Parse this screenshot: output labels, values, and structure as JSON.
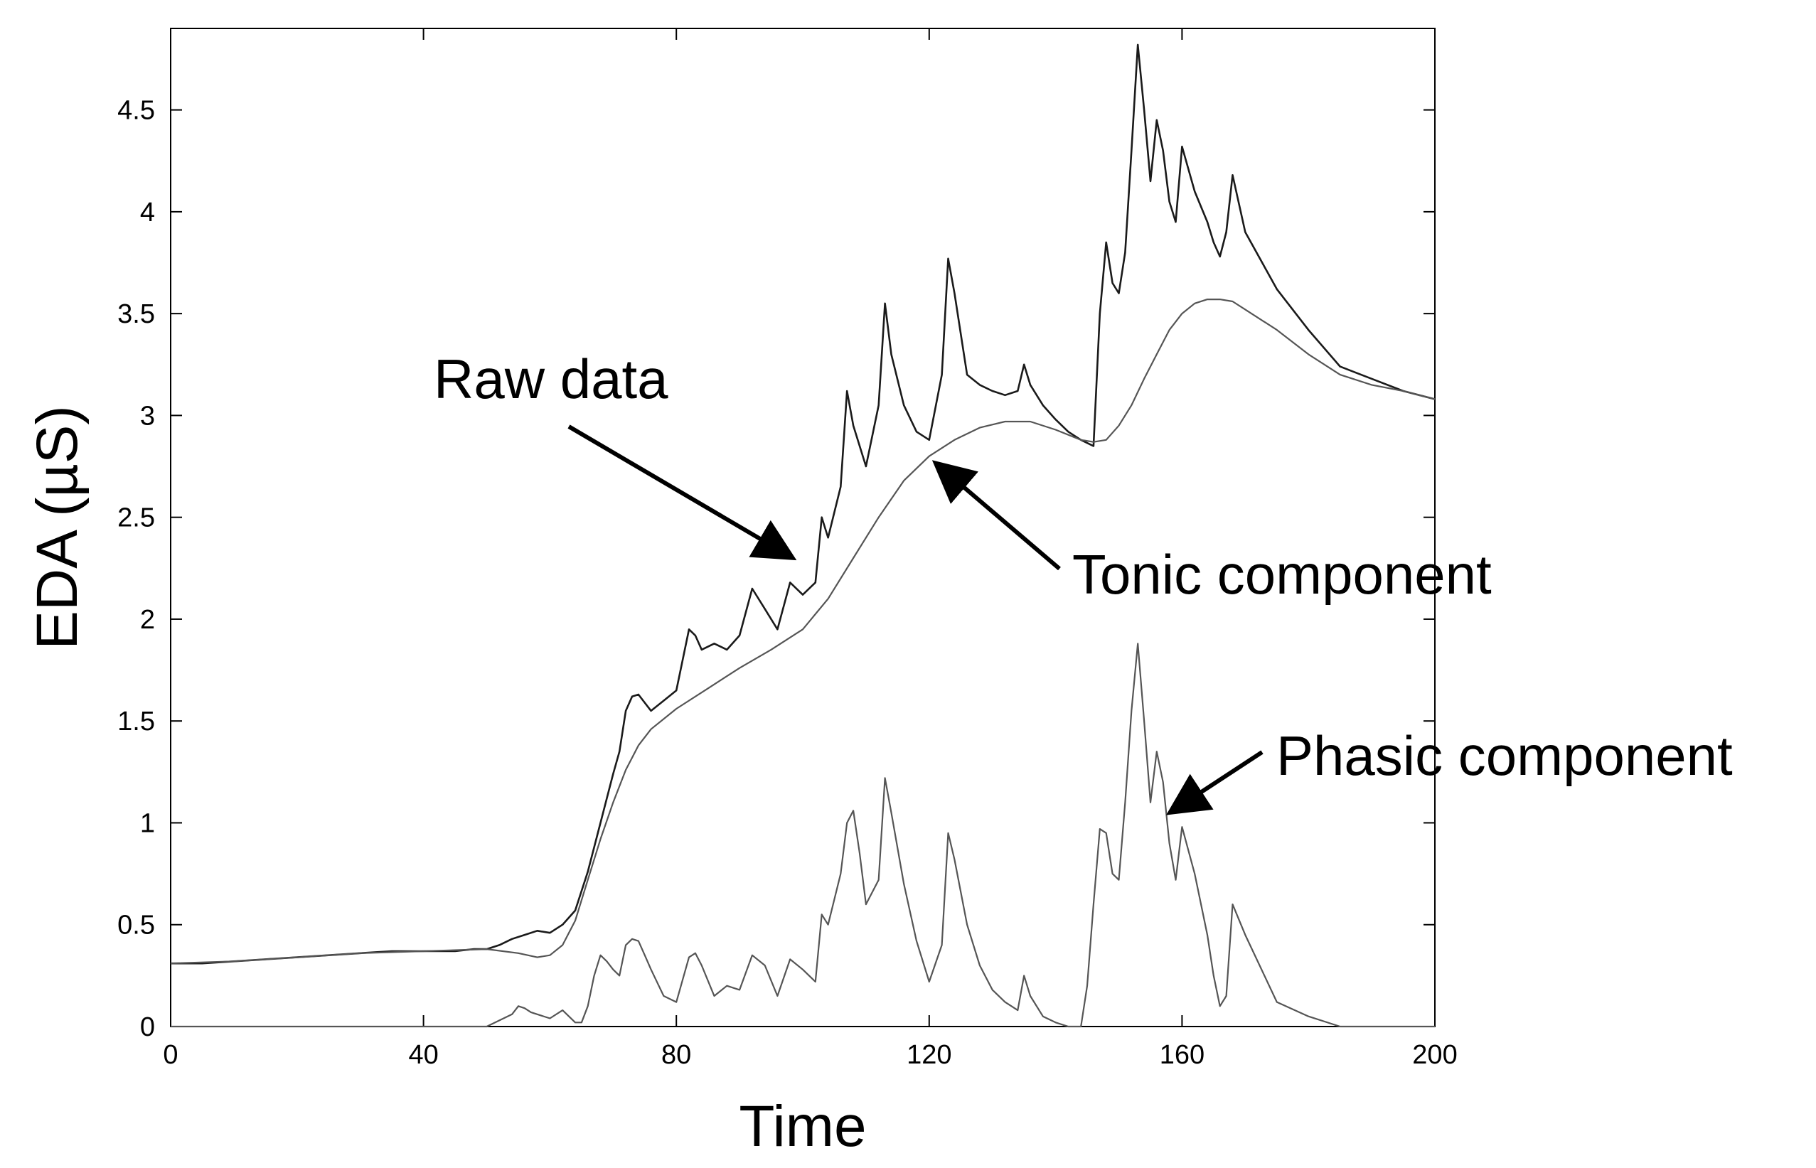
{
  "chart_data": {
    "type": "line",
    "title": "",
    "xlabel": "Time",
    "ylabel": "EDA (µS)",
    "xlim": [
      0,
      200
    ],
    "ylim": [
      0,
      4.9
    ],
    "xticks": [
      0,
      40,
      80,
      120,
      160,
      200
    ],
    "xtick_labels": [
      "0",
      "40",
      "80",
      "120",
      "160",
      "200"
    ],
    "yticks": [
      0,
      0.5,
      1,
      1.5,
      2,
      2.5,
      3,
      3.5,
      4,
      4.5
    ],
    "ytick_labels": [
      "0",
      "0.5",
      "1",
      "1.5",
      "2",
      "2.5",
      "3",
      "3.5",
      "4",
      "4.5"
    ],
    "grid": false,
    "annotations": [
      {
        "text": "Raw data",
        "target_x": 103,
        "target_y": 2.32
      },
      {
        "text": "Tonic component",
        "target_x": 121,
        "target_y": 2.8
      },
      {
        "text": "Phasic component",
        "target_x": 157,
        "target_y": 1.1
      }
    ],
    "series": [
      {
        "id": "raw",
        "name": "Raw data",
        "color": "#1a1a1a",
        "x": [
          0,
          5,
          10,
          15,
          20,
          25,
          30,
          35,
          40,
          45,
          48,
          50,
          52,
          54,
          56,
          58,
          60,
          62,
          64,
          66,
          68,
          70,
          71,
          72,
          73,
          74,
          76,
          78,
          80,
          82,
          83,
          84,
          86,
          88,
          90,
          92,
          94,
          96,
          98,
          100,
          102,
          103,
          104,
          106,
          107,
          108,
          109,
          110,
          112,
          113,
          114,
          116,
          118,
          120,
          122,
          123,
          124,
          126,
          128,
          130,
          132,
          134,
          135,
          136,
          138,
          140,
          142,
          144,
          146,
          147,
          148,
          149,
          150,
          151,
          152,
          153,
          154,
          155,
          156,
          157,
          158,
          159,
          160,
          162,
          164,
          165,
          166,
          167,
          168,
          170,
          175,
          180,
          185,
          190,
          195,
          200
        ],
        "y": [
          0.31,
          0.31,
          0.32,
          0.33,
          0.34,
          0.35,
          0.36,
          0.37,
          0.37,
          0.37,
          0.38,
          0.38,
          0.4,
          0.43,
          0.45,
          0.47,
          0.46,
          0.5,
          0.57,
          0.76,
          1.0,
          1.24,
          1.35,
          1.55,
          1.62,
          1.63,
          1.55,
          1.6,
          1.65,
          1.95,
          1.92,
          1.85,
          1.88,
          1.85,
          1.92,
          2.15,
          2.05,
          1.95,
          2.18,
          2.12,
          2.18,
          2.5,
          2.4,
          2.65,
          3.12,
          2.95,
          2.85,
          2.75,
          3.05,
          3.55,
          3.3,
          3.05,
          2.92,
          2.88,
          3.2,
          3.77,
          3.6,
          3.2,
          3.15,
          3.12,
          3.1,
          3.12,
          3.25,
          3.15,
          3.05,
          2.98,
          2.92,
          2.88,
          2.85,
          3.5,
          3.85,
          3.65,
          3.6,
          3.8,
          4.3,
          4.82,
          4.5,
          4.15,
          4.45,
          4.3,
          4.05,
          3.95,
          4.32,
          4.1,
          3.95,
          3.85,
          3.78,
          3.9,
          4.18,
          3.9,
          3.62,
          3.42,
          3.24,
          3.18,
          3.12,
          3.08
        ]
      },
      {
        "id": "tonic",
        "name": "Tonic component",
        "color": "#555555",
        "x": [
          0,
          10,
          20,
          30,
          40,
          50,
          55,
          58,
          60,
          62,
          64,
          66,
          68,
          70,
          72,
          74,
          76,
          80,
          85,
          90,
          95,
          100,
          104,
          108,
          112,
          116,
          120,
          124,
          128,
          132,
          136,
          140,
          144,
          146,
          148,
          150,
          152,
          154,
          156,
          158,
          160,
          162,
          164,
          166,
          168,
          170,
          175,
          180,
          185,
          190,
          195,
          200
        ],
        "y": [
          0.31,
          0.32,
          0.34,
          0.36,
          0.37,
          0.38,
          0.36,
          0.34,
          0.35,
          0.4,
          0.52,
          0.72,
          0.92,
          1.1,
          1.26,
          1.38,
          1.46,
          1.56,
          1.66,
          1.76,
          1.85,
          1.95,
          2.1,
          2.3,
          2.5,
          2.68,
          2.8,
          2.88,
          2.94,
          2.97,
          2.97,
          2.93,
          2.88,
          2.87,
          2.88,
          2.95,
          3.05,
          3.18,
          3.3,
          3.42,
          3.5,
          3.55,
          3.57,
          3.57,
          3.56,
          3.52,
          3.42,
          3.3,
          3.2,
          3.15,
          3.12,
          3.08
        ]
      },
      {
        "id": "phasic",
        "name": "Phasic component",
        "color": "#555555",
        "x": [
          0,
          20,
          40,
          50,
          52,
          54,
          55,
          56,
          57,
          58,
          60,
          62,
          63,
          64,
          65,
          66,
          67,
          68,
          69,
          70,
          71,
          72,
          73,
          74,
          75,
          76,
          78,
          80,
          82,
          83,
          84,
          86,
          88,
          90,
          92,
          94,
          96,
          98,
          100,
          102,
          103,
          104,
          106,
          107,
          108,
          109,
          110,
          112,
          113,
          114,
          116,
          118,
          120,
          122,
          123,
          124,
          126,
          128,
          130,
          132,
          134,
          135,
          136,
          138,
          140,
          142,
          144,
          145,
          146,
          147,
          148,
          149,
          150,
          151,
          152,
          153,
          154,
          155,
          156,
          157,
          158,
          159,
          160,
          162,
          164,
          165,
          166,
          167,
          168,
          170,
          175,
          180,
          185,
          190,
          195,
          200
        ],
        "y": [
          0,
          0,
          0,
          0,
          0.03,
          0.06,
          0.1,
          0.09,
          0.07,
          0.06,
          0.04,
          0.08,
          0.05,
          0.02,
          0.02,
          0.1,
          0.25,
          0.35,
          0.32,
          0.28,
          0.25,
          0.4,
          0.43,
          0.42,
          0.35,
          0.28,
          0.15,
          0.12,
          0.34,
          0.36,
          0.3,
          0.15,
          0.2,
          0.18,
          0.35,
          0.3,
          0.15,
          0.33,
          0.28,
          0.22,
          0.55,
          0.5,
          0.75,
          1.0,
          1.06,
          0.85,
          0.6,
          0.72,
          1.22,
          1.05,
          0.7,
          0.42,
          0.22,
          0.4,
          0.95,
          0.82,
          0.5,
          0.3,
          0.18,
          0.12,
          0.08,
          0.25,
          0.15,
          0.05,
          0.02,
          0.0,
          0.0,
          0.2,
          0.6,
          0.97,
          0.95,
          0.75,
          0.72,
          1.1,
          1.55,
          1.88,
          1.5,
          1.1,
          1.35,
          1.2,
          0.9,
          0.72,
          0.98,
          0.75,
          0.45,
          0.25,
          0.1,
          0.15,
          0.6,
          0.45,
          0.12,
          0.05,
          0.0,
          0.0,
          0.0,
          0.0
        ]
      }
    ]
  }
}
